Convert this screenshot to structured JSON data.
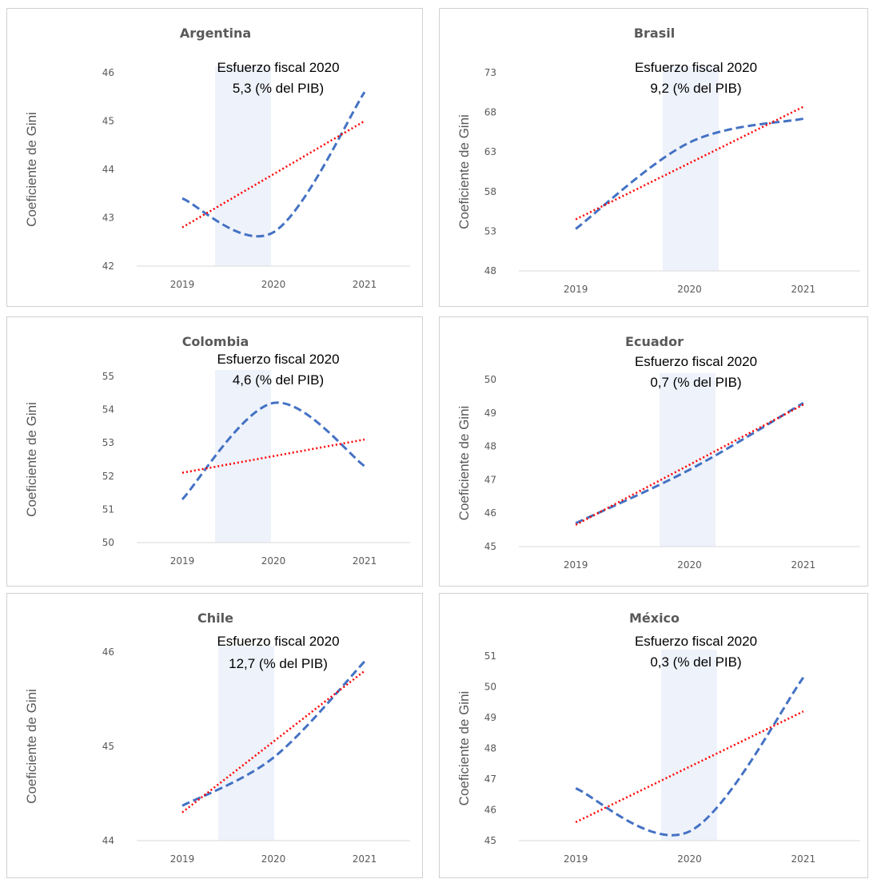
{
  "chart_data": [
    {
      "type": "line",
      "title": "Argentina",
      "ylabel": "Coeficiente  de Gini",
      "categories": [
        "2019",
        "2020",
        "2021"
      ],
      "yticks": [
        "42",
        "43",
        "44",
        "45",
        "46"
      ],
      "ylim": [
        42,
        46
      ],
      "annotation_line1": "Esfuerzo fiscal 2020",
      "annotation_line2": "5,3 (% del PIB)",
      "series": [
        {
          "values": [
            43.4,
            42.7,
            45.6
          ],
          "style": "dashed",
          "color": "#4472c4"
        },
        {
          "values": [
            42.8,
            43.9,
            45.0
          ],
          "style": "dotted",
          "color": "#ff0000"
        }
      ],
      "highlight": "2020"
    },
    {
      "type": "line",
      "title": "Brasil",
      "ylabel": "Coeficiente de Gini",
      "categories": [
        "2019",
        "2020",
        "2021"
      ],
      "yticks": [
        "48",
        "53",
        "58",
        "63",
        "68",
        "73"
      ],
      "ylim": [
        48,
        73
      ],
      "annotation_line1": "Esfuerzo fiscal 2020",
      "annotation_line2": "9,2 (% del PIB)",
      "series": [
        {
          "values": [
            53.3,
            64.2,
            67.2
          ],
          "style": "dashed",
          "color": "#4472c4"
        },
        {
          "values": [
            54.5,
            61.6,
            68.7
          ],
          "style": "dotted",
          "color": "#ff0000"
        }
      ],
      "highlight": "2020"
    },
    {
      "type": "line",
      "title": "Colombia",
      "ylabel": "Coeficiente de Gini",
      "categories": [
        "2019",
        "2020",
        "2021"
      ],
      "yticks": [
        "50",
        "51",
        "52",
        "53",
        "54",
        "55"
      ],
      "ylim": [
        50,
        55
      ],
      "annotation_line1": "Esfuerzo fiscal 2020",
      "annotation_line2": "4,6 (% del PIB)",
      "series": [
        {
          "values": [
            51.3,
            54.2,
            52.3
          ],
          "style": "dashed",
          "color": "#4472c4"
        },
        {
          "values": [
            52.1,
            52.6,
            53.1
          ],
          "style": "dotted",
          "color": "#ff0000"
        }
      ],
      "highlight": "2020"
    },
    {
      "type": "line",
      "title": "Ecuador",
      "ylabel": "Coeficiente de Gini",
      "categories": [
        "2019",
        "2020",
        "2021"
      ],
      "yticks": [
        "45",
        "46",
        "47",
        "48",
        "49",
        "50"
      ],
      "ylim": [
        45,
        50
      ],
      "annotation_line1": "Esfuerzo fiscal 2020",
      "annotation_line2": "0,7 (% del PIB)",
      "series": [
        {
          "values": [
            45.7,
            47.3,
            49.3
          ],
          "style": "dashed",
          "color": "#4472c4"
        },
        {
          "values": [
            45.65,
            47.45,
            49.25
          ],
          "style": "dotted",
          "color": "#ff0000"
        }
      ],
      "highlight": "2020"
    },
    {
      "type": "line",
      "title": "Chile",
      "ylabel": "Coeficiente de Gini",
      "categories": [
        "2019",
        "2020",
        "2021"
      ],
      "yticks": [
        "44",
        "45",
        "46"
      ],
      "ylim": [
        44,
        46
      ],
      "annotation_line1": "Esfuerzo fiscal 2020",
      "annotation_line2": "12,7 (% del PIB)",
      "series": [
        {
          "values": [
            44.37,
            44.88,
            45.9
          ],
          "style": "dashed",
          "color": "#4472c4"
        },
        {
          "values": [
            44.3,
            45.05,
            45.8
          ],
          "style": "dotted",
          "color": "#ff0000"
        }
      ],
      "highlight": "2020"
    },
    {
      "type": "line",
      "title": "México",
      "ylabel": "Coeficiente de Gini",
      "categories": [
        "2019",
        "2020",
        "2021"
      ],
      "yticks": [
        "45",
        "46",
        "47",
        "48",
        "49",
        "50",
        "51"
      ],
      "ylim": [
        45,
        51
      ],
      "annotation_line1": "Esfuerzo fiscal 2020",
      "annotation_line2": "0,3 (% del PIB)",
      "series": [
        {
          "values": [
            46.7,
            45.3,
            50.3
          ],
          "style": "dashed",
          "color": "#4472c4"
        },
        {
          "values": [
            45.6,
            47.4,
            49.2
          ],
          "style": "dotted",
          "color": "#ff0000"
        }
      ],
      "highlight": "2020"
    }
  ]
}
